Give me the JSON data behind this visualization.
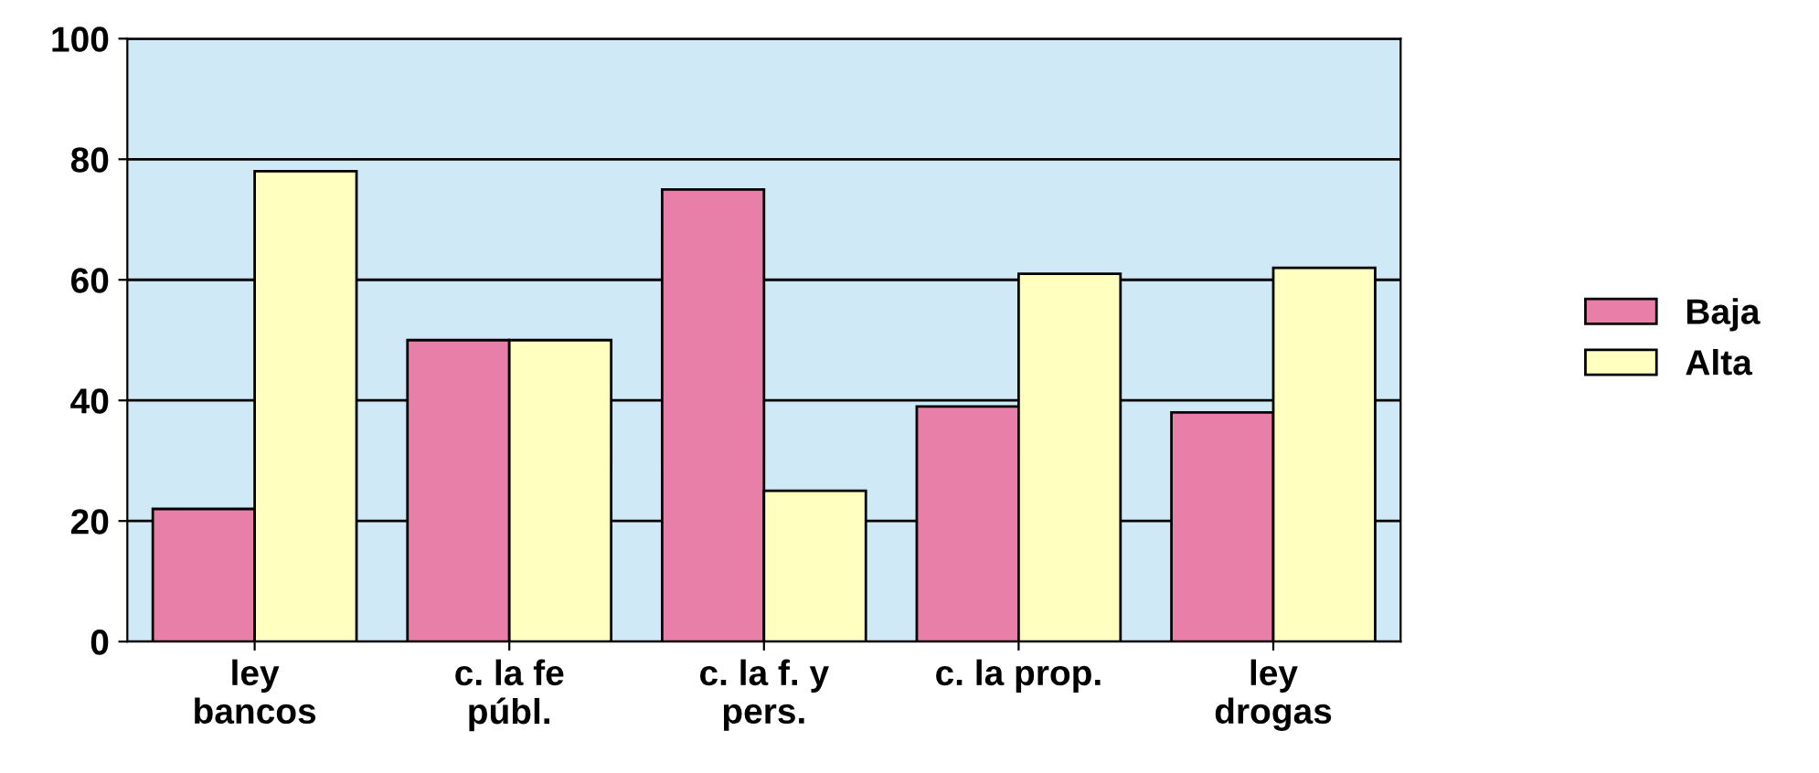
{
  "chart_data": {
    "type": "bar",
    "categories": [
      "ley\nbancos",
      "c. la fe\npúbl.",
      "c. la f. y\npers.",
      "c. la prop.",
      "ley\ndrogas"
    ],
    "series": [
      {
        "name": "Baja",
        "color": "#e87fa8",
        "values": [
          22,
          50,
          75,
          39,
          38
        ]
      },
      {
        "name": "Alta",
        "color": "#ffffc0",
        "values": [
          78,
          50,
          25,
          61,
          62
        ]
      }
    ],
    "ylim": [
      0,
      100
    ],
    "yticks": [
      0,
      20,
      40,
      60,
      80,
      100
    ],
    "grid": "y",
    "legend": "right"
  }
}
